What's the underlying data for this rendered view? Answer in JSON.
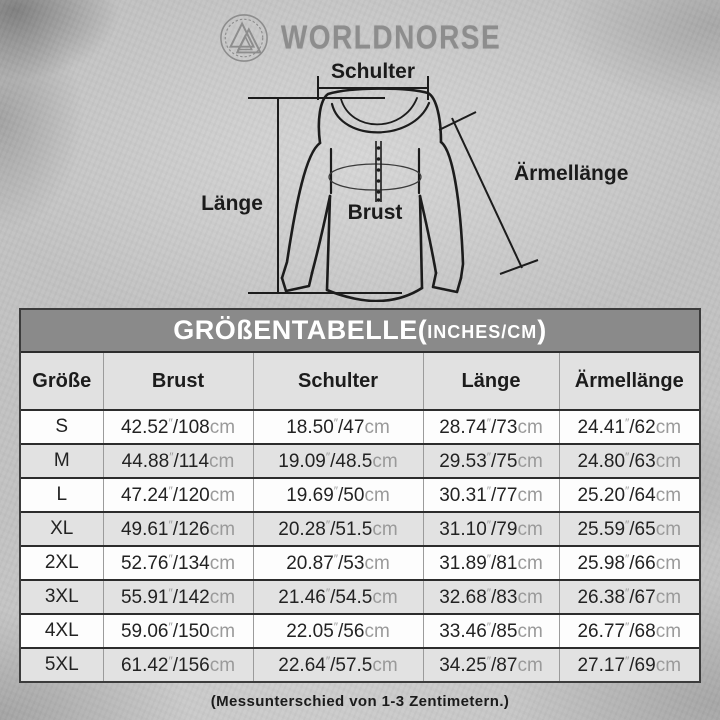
{
  "brand": {
    "name": "WORLDNORSE",
    "emblem": "valknut-icon"
  },
  "diagram": {
    "labels": {
      "schulter": "Schulter",
      "laenge": "Länge",
      "brust": "Brust",
      "aermellaenge": "Ärmellänge"
    }
  },
  "table": {
    "title_main": "GRÖßENTABELLE(",
    "title_unit": "INCHES/CM",
    "title_close": ")",
    "headers": [
      "Größe",
      "Brust",
      "Schulter",
      "Länge",
      "Ärmellänge"
    ],
    "rows": [
      {
        "size": "S",
        "brust": "42.52″/108cm",
        "schulter": "18.50″/47cm",
        "laenge": "28.74″/73cm",
        "aermellaenge": "24.41″/62cm"
      },
      {
        "size": "M",
        "brust": "44.88″/114cm",
        "schulter": "19.09″/48.5cm",
        "laenge": "29.53″/75cm",
        "aermellaenge": "24.80″/63cm"
      },
      {
        "size": "L",
        "brust": "47.24″/120cm",
        "schulter": "19.69″/50cm",
        "laenge": "30.31″/77cm",
        "aermellaenge": "25.20″/64cm"
      },
      {
        "size": "XL",
        "brust": "49.61″/126cm",
        "schulter": "20.28″/51.5cm",
        "laenge": "31.10″/79cm",
        "aermellaenge": "25.59″/65cm"
      },
      {
        "size": "2XL",
        "brust": "52.76″/134cm",
        "schulter": "20.87″/53cm",
        "laenge": "31.89″/81cm",
        "aermellaenge": "25.98″/66cm"
      },
      {
        "size": "3XL",
        "brust": "55.91″/142cm",
        "schulter": "21.46″/54.5cm",
        "laenge": "32.68″/83cm",
        "aermellaenge": "26.38″/67cm"
      },
      {
        "size": "4XL",
        "brust": "59.06″/150cm",
        "schulter": "22.05″/56cm",
        "laenge": "33.46″/85cm",
        "aermellaenge": "26.77″/68cm"
      },
      {
        "size": "5XL",
        "brust": "61.42″/156cm",
        "schulter": "22.64″/57.5cm",
        "laenge": "34.25″/87cm",
        "aermellaenge": "27.17″/69cm"
      }
    ]
  },
  "footer": {
    "note": "(Messunterschied von 1-3 Zentimetern.)"
  },
  "colors": {
    "title_bar_bg": "#8a8a8a",
    "header_bg": "#e1e1e1",
    "row_bg": "#fdfdfd",
    "row_alt_bg": "#e2e2e2",
    "cm_text": "#9a9a9a",
    "line": "#1c1c1c",
    "brand_gray": "#8d8d8d"
  }
}
